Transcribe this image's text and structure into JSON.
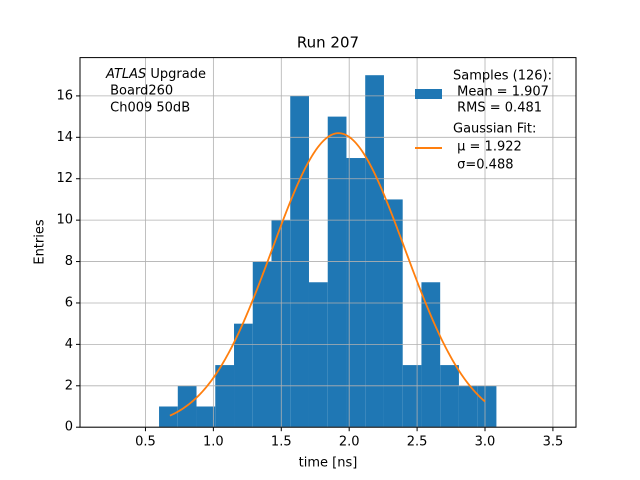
{
  "chart_data": {
    "type": "histogram",
    "title": "Run 207",
    "xlabel": "time [ns]",
    "ylabel": "Entries",
    "bins": [
      0.6,
      0.738,
      0.876,
      1.014,
      1.152,
      1.29,
      1.428,
      1.566,
      1.704,
      1.842,
      1.98,
      2.118,
      2.256,
      2.394,
      2.532,
      2.67,
      2.808,
      2.946,
      3.084
    ],
    "values": [
      1,
      2,
      1,
      3,
      5,
      8,
      10,
      16,
      7,
      15,
      13,
      17,
      11,
      3,
      7,
      3,
      2,
      2
    ],
    "color": "#1f77b4",
    "xlim": [
      0.018,
      3.67
    ],
    "ylim": [
      0,
      17.85
    ],
    "xticks": [
      0.5,
      {
        "value": 1,
        "label": "1.0"
      },
      1.5,
      {
        "value": 2,
        "label": "2.0"
      },
      2.5,
      {
        "value": 3,
        "label": "3.0"
      },
      3.5
    ],
    "yticks": [
      0,
      2,
      4,
      6,
      8,
      10,
      12,
      14,
      16
    ],
    "grid": true,
    "annotation": {
      "italic": "ATLAS",
      "lines": [
        " Upgrade",
        " Board260",
        " Ch009 50dB"
      ]
    },
    "legend": {
      "samples": {
        "name": "Samples (126):",
        "stats": [
          " Mean = 1.907",
          " RMS = 0.481"
        ]
      },
      "fit": {
        "name": "Gaussian Fit:",
        "stats": [
          " μ = 1.922",
          " σ=0.488"
        ]
      }
    },
    "fit": {
      "color": "#ff7f0e",
      "amplitude": 14.2,
      "mu": 1.922,
      "sigma": 0.488,
      "x_range": [
        0.68,
        3.0
      ]
    }
  }
}
